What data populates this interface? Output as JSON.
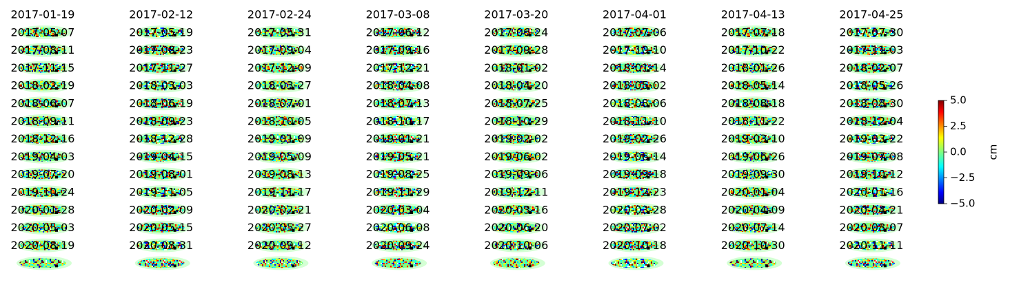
{
  "panels": [
    {
      "title": "2017-01-19"
    },
    {
      "title": "2017-02-12"
    },
    {
      "title": "2017-02-24"
    },
    {
      "title": "2017-03-08"
    },
    {
      "title": "2017-03-20"
    },
    {
      "title": "2017-04-01"
    },
    {
      "title": "2017-04-13"
    },
    {
      "title": "2017-04-25"
    },
    {
      "title": "2017-05-07"
    },
    {
      "title": "2017-05-19"
    },
    {
      "title": "2017-05-31"
    },
    {
      "title": "2017-06-12"
    },
    {
      "title": "2017-06-24"
    },
    {
      "title": "2017-07-06"
    },
    {
      "title": "2017-07-18"
    },
    {
      "title": "2017-07-30"
    },
    {
      "title": "2017-08-11"
    },
    {
      "title": "2017-08-23"
    },
    {
      "title": "2017-09-04"
    },
    {
      "title": "2017-09-16"
    },
    {
      "title": "2017-09-28"
    },
    {
      "title": "2017-10-10"
    },
    {
      "title": "2017-10-22"
    },
    {
      "title": "2017-11-03"
    },
    {
      "title": "2017-11-15"
    },
    {
      "title": "2017-11-27"
    },
    {
      "title": "2017-12-09"
    },
    {
      "title": "2017-12-21"
    },
    {
      "title": "2018-01-02"
    },
    {
      "title": "2018-01-14"
    },
    {
      "title": "2018-01-26"
    },
    {
      "title": "2018-02-07"
    },
    {
      "title": "2018-02-19"
    },
    {
      "title": "2018-03-03"
    },
    {
      "title": "2018-03-27"
    },
    {
      "title": "2018-04-08"
    },
    {
      "title": "2018-04-20"
    },
    {
      "title": "2018-05-02"
    },
    {
      "title": "2018-05-14"
    },
    {
      "title": "2018-05-26"
    },
    {
      "title": "2018-06-07"
    },
    {
      "title": "2018-06-19"
    },
    {
      "title": "2018-07-01"
    },
    {
      "title": "2018-07-13"
    },
    {
      "title": "2018-07-25"
    },
    {
      "title": "2018-08-06"
    },
    {
      "title": "2018-08-18"
    },
    {
      "title": "2018-08-30"
    },
    {
      "title": "2018-09-11"
    },
    {
      "title": "2018-09-23"
    },
    {
      "title": "2018-10-05"
    },
    {
      "title": "2018-10-17"
    },
    {
      "title": "2018-10-29"
    },
    {
      "title": "2018-11-10"
    },
    {
      "title": "2018-11-22"
    },
    {
      "title": "2018-12-04"
    },
    {
      "title": "2018-12-16"
    },
    {
      "title": "2018-12-28"
    },
    {
      "title": "2019-01-09"
    },
    {
      "title": "2019-01-21"
    },
    {
      "title": "2019-02-02"
    },
    {
      "title": "2019-02-26"
    },
    {
      "title": "2019-03-10"
    },
    {
      "title": "2019-03-22"
    },
    {
      "title": "2019-04-03"
    },
    {
      "title": "2019-04-15"
    },
    {
      "title": "2019-05-09"
    },
    {
      "title": "2019-05-21"
    },
    {
      "title": "2019-06-02"
    },
    {
      "title": "2019-06-14"
    },
    {
      "title": "2019-06-26"
    },
    {
      "title": "2019-07-08"
    },
    {
      "title": "2019-07-20"
    },
    {
      "title": "2019-08-01"
    },
    {
      "title": "2019-08-13"
    },
    {
      "title": "2019-08-25"
    },
    {
      "title": "2019-09-06"
    },
    {
      "title": "2019-09-18"
    },
    {
      "title": "2019-09-30"
    },
    {
      "title": "2019-10-12"
    },
    {
      "title": "2019-10-24"
    },
    {
      "title": "2019-11-05"
    },
    {
      "title": "2019-11-17"
    },
    {
      "title": "2019-11-29"
    },
    {
      "title": "2019-12-11"
    },
    {
      "title": "2019-12-23"
    },
    {
      "title": "2020-01-04"
    },
    {
      "title": "2020-01-16"
    },
    {
      "title": "2020-01-28"
    },
    {
      "title": "2020-02-09"
    },
    {
      "title": "2020-02-21"
    },
    {
      "title": "2020-03-04"
    },
    {
      "title": "2020-03-16"
    },
    {
      "title": "2020-03-28"
    },
    {
      "title": "2020-04-09"
    },
    {
      "title": "2020-04-21"
    },
    {
      "title": "2020-05-03"
    },
    {
      "title": "2020-05-15"
    },
    {
      "title": "2020-05-27"
    },
    {
      "title": "2020-06-08"
    },
    {
      "title": "2020-06-20"
    },
    {
      "title": "2020-07-02"
    },
    {
      "title": "2020-07-14"
    },
    {
      "title": "2020-08-07"
    },
    {
      "title": "2020-08-19"
    },
    {
      "title": "2020-08-31"
    },
    {
      "title": "2020-09-12"
    },
    {
      "title": "2020-09-24"
    },
    {
      "title": "2020-10-06"
    },
    {
      "title": "2020-10-18"
    },
    {
      "title": "2020-10-30"
    },
    {
      "title": "2020-11-11"
    }
  ],
  "colorbar": {
    "label": "cm",
    "lim": [
      -5,
      5
    ],
    "ticks": [
      {
        "value": 5,
        "label": "5.0"
      },
      {
        "value": 2.5,
        "label": "2.5"
      },
      {
        "value": 0,
        "label": "0.0"
      },
      {
        "value": -2.5,
        "label": "−2.5"
      },
      {
        "value": -5,
        "label": "−5.0"
      }
    ]
  }
}
